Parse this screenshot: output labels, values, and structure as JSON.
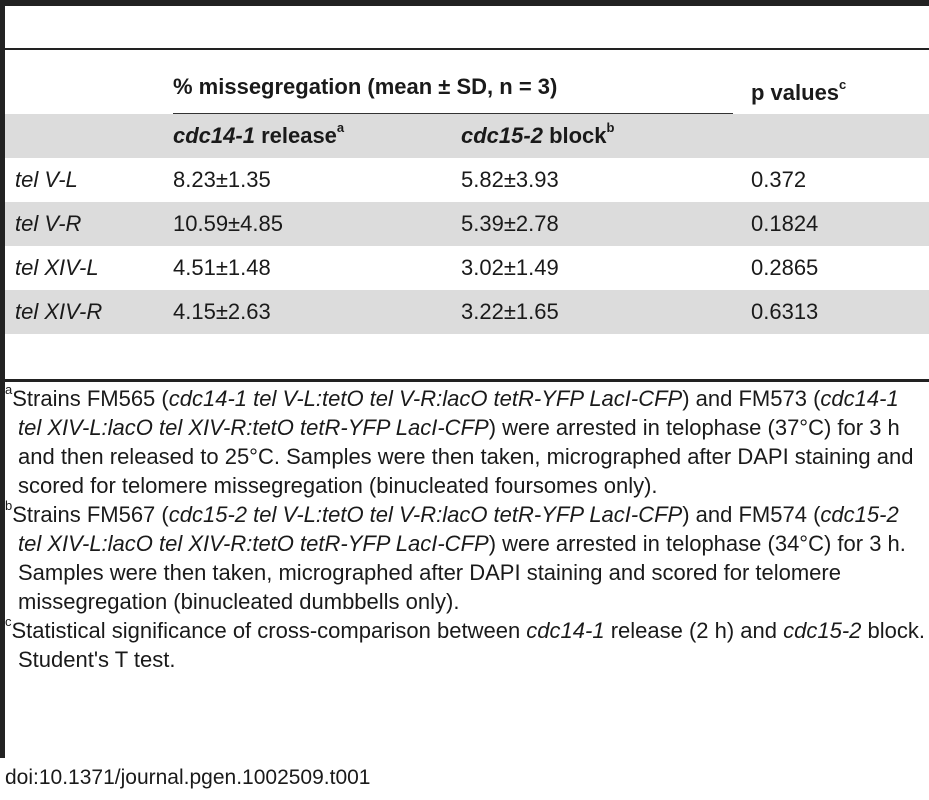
{
  "table": {
    "header": {
      "group": "% missegregation (mean ± SD, n = 3)",
      "pvalues": "p values",
      "pvalues_sup": "c",
      "col_a_italic": "cdc14-1",
      "col_a_rest": " release",
      "col_a_sup": "a",
      "col_b_italic": "cdc15-2",
      "col_b_rest": " block",
      "col_b_sup": "b"
    },
    "rows": [
      {
        "label": "tel V-L",
        "a": "8.23±1.35",
        "b": "5.82±3.93",
        "p": "0.372"
      },
      {
        "label": "tel V-R",
        "a": "10.59±4.85",
        "b": "5.39±2.78",
        "p": "0.1824"
      },
      {
        "label": "tel XIV-L",
        "a": "4.51±1.48",
        "b": "3.02±1.49",
        "p": "0.2865"
      },
      {
        "label": "tel XIV-R",
        "a": "4.15±2.63",
        "b": "3.22±1.65",
        "p": "0.6313"
      }
    ]
  },
  "notes": {
    "a": {
      "sup": "a",
      "t1": "Strains FM565 (",
      "i1": "cdc14-1 tel V-L:tetO tel V-R:lacO tetR-YFP LacI-CFP",
      "t2": ") and FM573 (",
      "i2": "cdc14-1 tel XIV-L:lacO tel XIV-R:tetO tetR-YFP LacI-CFP",
      "t3": ") were arrested in telophase (37°C) for 3 h and then released to 25°C. Samples were then taken, micrographed after DAPI staining and scored for telomere missegregation (binucleated foursomes only)."
    },
    "b": {
      "sup": "b",
      "t1": "Strains FM567 (",
      "i1": "cdc15-2 tel V-L:tetO tel V-R:lacO tetR-YFP LacI-CFP",
      "t2": ") and FM574 (",
      "i2": "cdc15-2 tel XIV-L:lacO tel XIV-R:tetO tetR-YFP LacI-CFP",
      "t3": ") were arrested in telophase (34°C) for 3 h. Samples were then taken, micrographed after DAPI staining and scored for telomere missegregation (binucleated dumbbells only)."
    },
    "c": {
      "sup": "c",
      "t1": "Statistical significance of cross-comparison between ",
      "i1": "cdc14-1",
      "t2": " release (2 h) and ",
      "i2": "cdc15-2",
      "t3": " block. Student's T test."
    }
  },
  "doi": "doi:10.1371/journal.pgen.1002509.t001"
}
